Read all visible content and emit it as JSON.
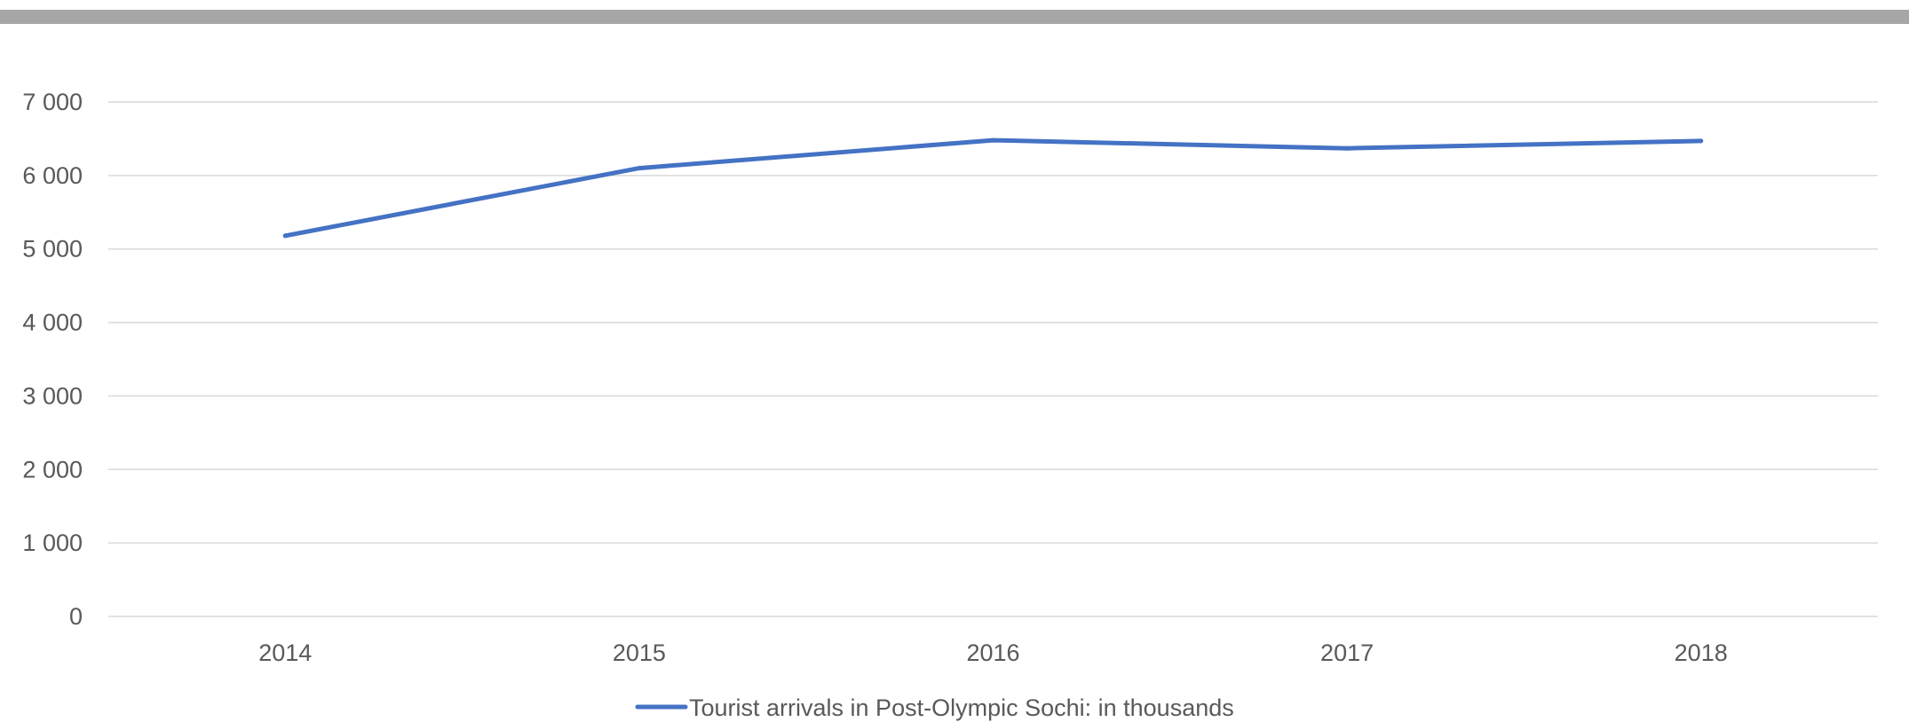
{
  "chart_data": {
    "type": "line",
    "title": "",
    "xlabel": "",
    "ylabel": "",
    "categories": [
      "2014",
      "2015",
      "2016",
      "2017",
      "2018"
    ],
    "series": [
      {
        "name": "Tourist arrivals in Post-Olympic Sochi: in thousands",
        "values": [
          5180,
          6100,
          6480,
          6370,
          6470
        ],
        "color": "#4472C4"
      }
    ],
    "ylim": [
      0,
      7000
    ],
    "yticks": [
      0,
      1000,
      2000,
      3000,
      4000,
      5000,
      6000,
      7000
    ],
    "ytick_labels": [
      "0",
      "1 000",
      "2 000",
      "3 000",
      "4 000",
      "5 000",
      "6 000",
      "7 000"
    ],
    "grid": true,
    "legend_position": "bottom",
    "colors": {
      "series": "#4472C4",
      "gridline": "#D9D9D9",
      "text": "#595959",
      "top_bar": "#A6A6A6"
    }
  }
}
